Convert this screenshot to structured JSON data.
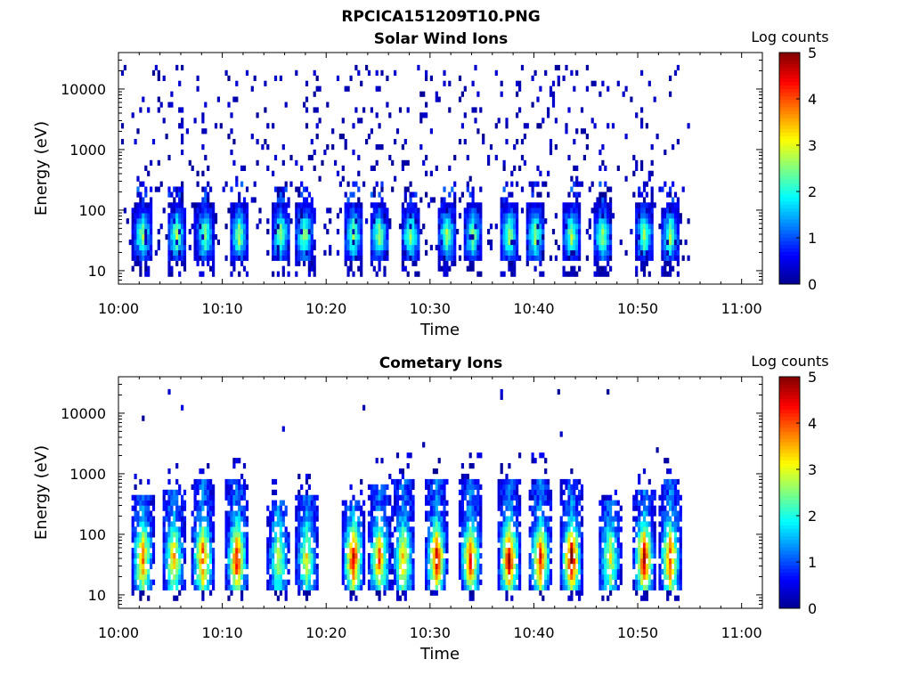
{
  "figure_title": "RPCICA151209T10.PNG",
  "colorscale": [
    "#00008f",
    "#0000ff",
    "#0080ff",
    "#00ffff",
    "#80ff80",
    "#ffff00",
    "#ff8000",
    "#ff0000",
    "#800000"
  ],
  "chart_data": [
    {
      "type": "heatmap",
      "title": "Solar Wind Ions",
      "xlabel": "Time",
      "ylabel": "Energy (eV)",
      "x_tick_labels": [
        "10:00",
        "10:10",
        "10:20",
        "10:30",
        "10:40",
        "10:50",
        "11:00"
      ],
      "x_ticks_min": [
        0,
        10,
        20,
        30,
        40,
        50,
        60
      ],
      "xlim_min": [
        0,
        62
      ],
      "y_scale": "log",
      "y_tick_labels": [
        "10",
        "100",
        "1000",
        "10000"
      ],
      "y_ticks_eV": [
        10,
        100,
        1000,
        10000
      ],
      "ylim_eV": [
        6,
        40000
      ],
      "data_extent_min": [
        0,
        55
      ],
      "colorbar": {
        "label": "Log counts",
        "ticks": [
          "0",
          "1",
          "2",
          "3",
          "4",
          "5"
        ],
        "range": [
          0,
          5
        ]
      },
      "beam_bursts_min": [
        2.2,
        5.5,
        8.2,
        11.5,
        15.5,
        17.8,
        22.5,
        25,
        28,
        31.5,
        34,
        37.5,
        40,
        43.5,
        46.5,
        50.5,
        53
      ],
      "beam_energy_eV": 35,
      "background_counts": "sparse scattered single counts from ~10 eV to ~20000 eV, log counts 0-0.5",
      "grid": false
    },
    {
      "type": "heatmap",
      "title": "Cometary Ions",
      "xlabel": "Time",
      "ylabel": "Energy (eV)",
      "x_tick_labels": [
        "10:00",
        "10:10",
        "10:20",
        "10:30",
        "10:40",
        "10:50",
        "11:00"
      ],
      "x_ticks_min": [
        0,
        10,
        20,
        30,
        40,
        50,
        60
      ],
      "xlim_min": [
        0,
        62
      ],
      "y_scale": "log",
      "y_tick_labels": [
        "10",
        "100",
        "1000",
        "10000"
      ],
      "y_ticks_eV": [
        10,
        100,
        1000,
        10000
      ],
      "ylim_eV": [
        6,
        40000
      ],
      "data_extent_min": [
        0,
        55
      ],
      "colorbar": {
        "label": "Log counts",
        "ticks": [
          "0",
          "1",
          "2",
          "3",
          "4",
          "5"
        ],
        "range": [
          0,
          5
        ]
      },
      "bursts": [
        {
          "t_min": 2.2,
          "e_top_eV": 400,
          "peak_log": 2.8
        },
        {
          "t_min": 5.2,
          "e_top_eV": 500,
          "peak_log": 2.5
        },
        {
          "t_min": 8.0,
          "e_top_eV": 700,
          "peak_log": 3.0
        },
        {
          "t_min": 11.3,
          "e_top_eV": 700,
          "peak_log": 3.3
        },
        {
          "t_min": 15.3,
          "e_top_eV": 300,
          "peak_log": 1.8
        },
        {
          "t_min": 18.0,
          "e_top_eV": 400,
          "peak_log": 2.0
        },
        {
          "t_min": 22.5,
          "e_top_eV": 300,
          "peak_log": 3.5
        },
        {
          "t_min": 25.0,
          "e_top_eV": 600,
          "peak_log": 2.8
        },
        {
          "t_min": 27.3,
          "e_top_eV": 800,
          "peak_log": 2.5
        },
        {
          "t_min": 30.5,
          "e_top_eV": 800,
          "peak_log": 3.5
        },
        {
          "t_min": 33.8,
          "e_top_eV": 800,
          "peak_log": 3.2
        },
        {
          "t_min": 37.5,
          "e_top_eV": 800,
          "peak_log": 3.6
        },
        {
          "t_min": 40.5,
          "e_top_eV": 800,
          "peak_log": 3.2
        },
        {
          "t_min": 43.5,
          "e_top_eV": 700,
          "peak_log": 4.0
        },
        {
          "t_min": 47.2,
          "e_top_eV": 300,
          "peak_log": 2.0
        },
        {
          "t_min": 50.5,
          "e_top_eV": 500,
          "peak_log": 3.6
        },
        {
          "t_min": 53.0,
          "e_top_eV": 700,
          "peak_log": 3.2
        }
      ],
      "beam_energy_eV": 35,
      "grid": false
    }
  ]
}
